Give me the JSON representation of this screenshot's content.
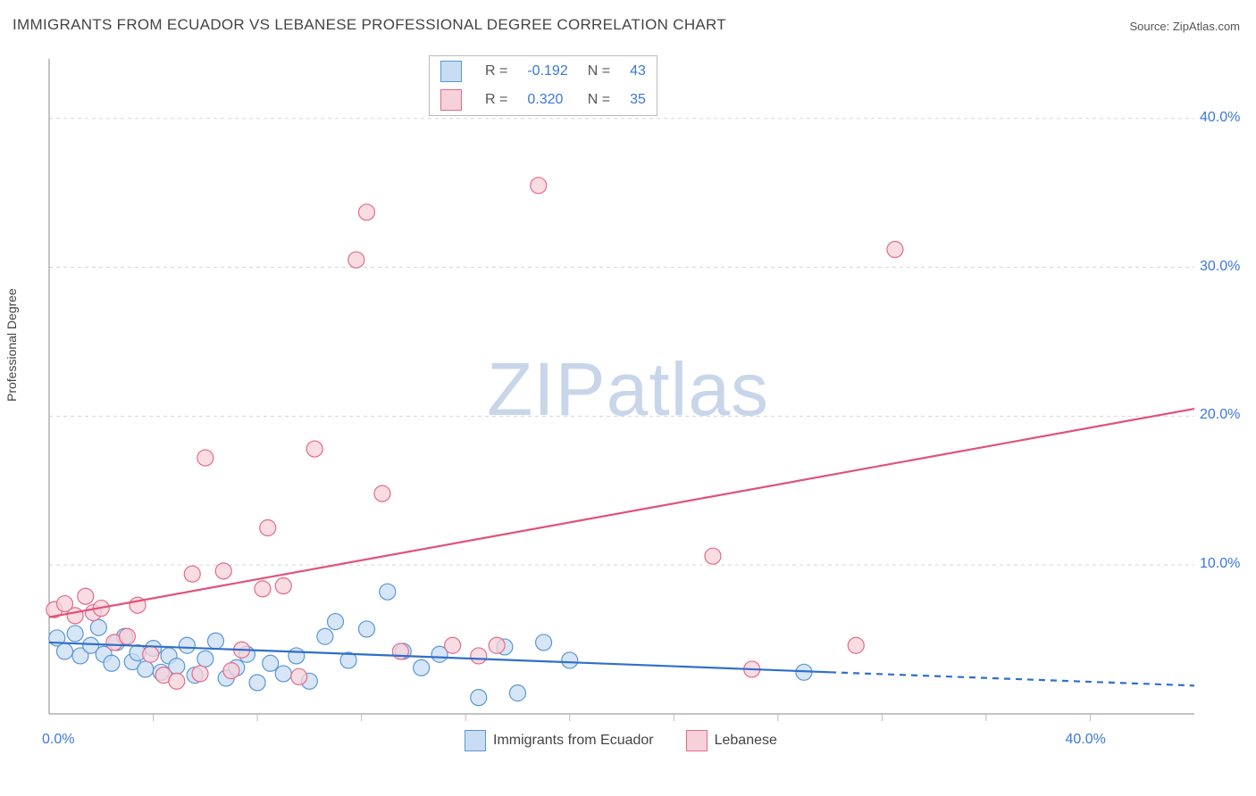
{
  "title": "IMMIGRANTS FROM ECUADOR VS LEBANESE PROFESSIONAL DEGREE CORRELATION CHART",
  "source_label": "Source: ZipAtlas.com",
  "ylabel": "Professional Degree",
  "watermark": {
    "zip": "ZIP",
    "atlas": "atlas"
  },
  "chart": {
    "type": "scatter",
    "background_color": "#ffffff",
    "grid_color": "#d6d6d6",
    "axis_color": "#888888",
    "tick_color": "#bbbbbb",
    "axis_label_color": "#3b78d8",
    "label_fontsize": 16,
    "title_fontsize": 17,
    "xlim": [
      0,
      44
    ],
    "ylim": [
      0,
      44
    ],
    "y_gridlines": [
      10,
      20,
      30,
      40
    ],
    "x_minor_ticks": [
      4,
      8,
      12,
      16,
      20,
      24,
      28,
      32,
      36,
      40
    ],
    "x_axis_labels": [
      {
        "value": 0,
        "text": "0.0%"
      },
      {
        "value": 40,
        "text": "40.0%"
      }
    ],
    "y_axis_labels": [
      {
        "value": 10,
        "text": "10.0%"
      },
      {
        "value": 20,
        "text": "20.0%"
      },
      {
        "value": 30,
        "text": "30.0%"
      },
      {
        "value": 40,
        "text": "40.0%"
      }
    ],
    "marker_radius": 9,
    "trend_line_width": 2.2,
    "series": [
      {
        "name": "Immigrants from Ecuador",
        "label": "Immigrants from Ecuador",
        "R": "-0.192",
        "N": "43",
        "fill": "#c8ddf3",
        "stroke": "#5a96d6",
        "trend_color": "#2f6fc9",
        "trend": {
          "x1": 0,
          "y1": 4.8,
          "x2": 30,
          "y2": 2.8,
          "dash_after_x": 30,
          "x2_ext": 44,
          "y2_ext": 1.9
        },
        "points": [
          [
            0.3,
            5.1
          ],
          [
            0.6,
            4.2
          ],
          [
            1.0,
            5.4
          ],
          [
            1.2,
            3.9
          ],
          [
            1.6,
            4.6
          ],
          [
            1.9,
            5.8
          ],
          [
            2.1,
            4.0
          ],
          [
            2.4,
            3.4
          ],
          [
            2.6,
            4.8
          ],
          [
            2.9,
            5.2
          ],
          [
            3.2,
            3.5
          ],
          [
            3.4,
            4.1
          ],
          [
            3.7,
            3.0
          ],
          [
            4.0,
            4.4
          ],
          [
            4.3,
            2.8
          ],
          [
            4.6,
            3.9
          ],
          [
            4.9,
            3.2
          ],
          [
            5.3,
            4.6
          ],
          [
            5.6,
            2.6
          ],
          [
            6.0,
            3.7
          ],
          [
            6.4,
            4.9
          ],
          [
            6.8,
            2.4
          ],
          [
            7.2,
            3.1
          ],
          [
            7.6,
            4.0
          ],
          [
            8.0,
            2.1
          ],
          [
            8.5,
            3.4
          ],
          [
            9.0,
            2.7
          ],
          [
            9.5,
            3.9
          ],
          [
            10.0,
            2.2
          ],
          [
            10.6,
            5.2
          ],
          [
            11.0,
            6.2
          ],
          [
            11.5,
            3.6
          ],
          [
            12.2,
            5.7
          ],
          [
            13.0,
            8.2
          ],
          [
            13.6,
            4.2
          ],
          [
            14.3,
            3.1
          ],
          [
            15.0,
            4.0
          ],
          [
            16.5,
            1.1
          ],
          [
            17.5,
            4.5
          ],
          [
            18.0,
            1.4
          ],
          [
            19.0,
            4.8
          ],
          [
            20.0,
            3.6
          ],
          [
            29.0,
            2.8
          ]
        ]
      },
      {
        "name": "Lebanese",
        "label": "Lebanese",
        "R": "0.320",
        "N": "35",
        "fill": "#f7d1da",
        "stroke": "#e46a8a",
        "trend_color": "#e0527a",
        "trend": {
          "x1": 0,
          "y1": 6.5,
          "x2": 44,
          "y2": 20.5
        },
        "points": [
          [
            0.2,
            7.0
          ],
          [
            0.6,
            7.4
          ],
          [
            1.0,
            6.6
          ],
          [
            1.4,
            7.9
          ],
          [
            1.7,
            6.8
          ],
          [
            2.0,
            7.1
          ],
          [
            2.5,
            4.8
          ],
          [
            3.0,
            5.2
          ],
          [
            3.4,
            7.3
          ],
          [
            3.9,
            4.0
          ],
          [
            4.4,
            2.6
          ],
          [
            4.9,
            2.2
          ],
          [
            5.5,
            9.4
          ],
          [
            5.8,
            2.7
          ],
          [
            6.0,
            17.2
          ],
          [
            6.7,
            9.6
          ],
          [
            7.0,
            2.9
          ],
          [
            7.4,
            4.3
          ],
          [
            8.2,
            8.4
          ],
          [
            8.4,
            12.5
          ],
          [
            9.0,
            8.6
          ],
          [
            9.6,
            2.5
          ],
          [
            10.2,
            17.8
          ],
          [
            11.8,
            30.5
          ],
          [
            12.2,
            33.7
          ],
          [
            12.8,
            14.8
          ],
          [
            13.5,
            4.2
          ],
          [
            15.5,
            4.6
          ],
          [
            16.5,
            3.9
          ],
          [
            17.2,
            4.6
          ],
          [
            18.8,
            35.5
          ],
          [
            25.5,
            10.6
          ],
          [
            27.0,
            3.0
          ],
          [
            31.0,
            4.6
          ],
          [
            32.5,
            31.2
          ]
        ]
      }
    ]
  },
  "top_legend": {
    "R_label": "R",
    "N_label": "N",
    "eq": "="
  },
  "bottom_legend": {
    "items": [
      "Immigrants from Ecuador",
      "Lebanese"
    ]
  }
}
